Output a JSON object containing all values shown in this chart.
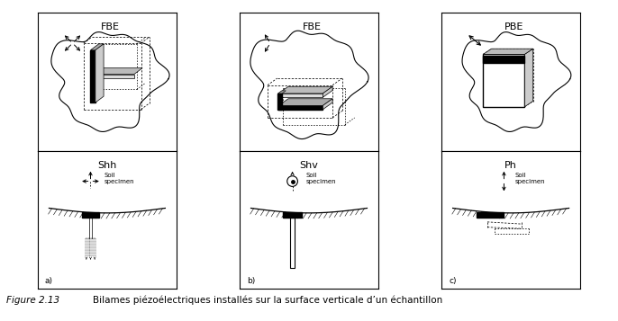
{
  "title": "Figure 2.13",
  "caption": "Bilames piézoélectriques installés sur la surface verticale d’un échantillon",
  "background_color": "#ffffff",
  "top_labels": [
    "FBE",
    "FBE",
    "PBE"
  ],
  "bottom_labels": [
    "Shh",
    "Shv",
    "Ph"
  ],
  "sub_labels": [
    "a)",
    "b)",
    "c)"
  ]
}
